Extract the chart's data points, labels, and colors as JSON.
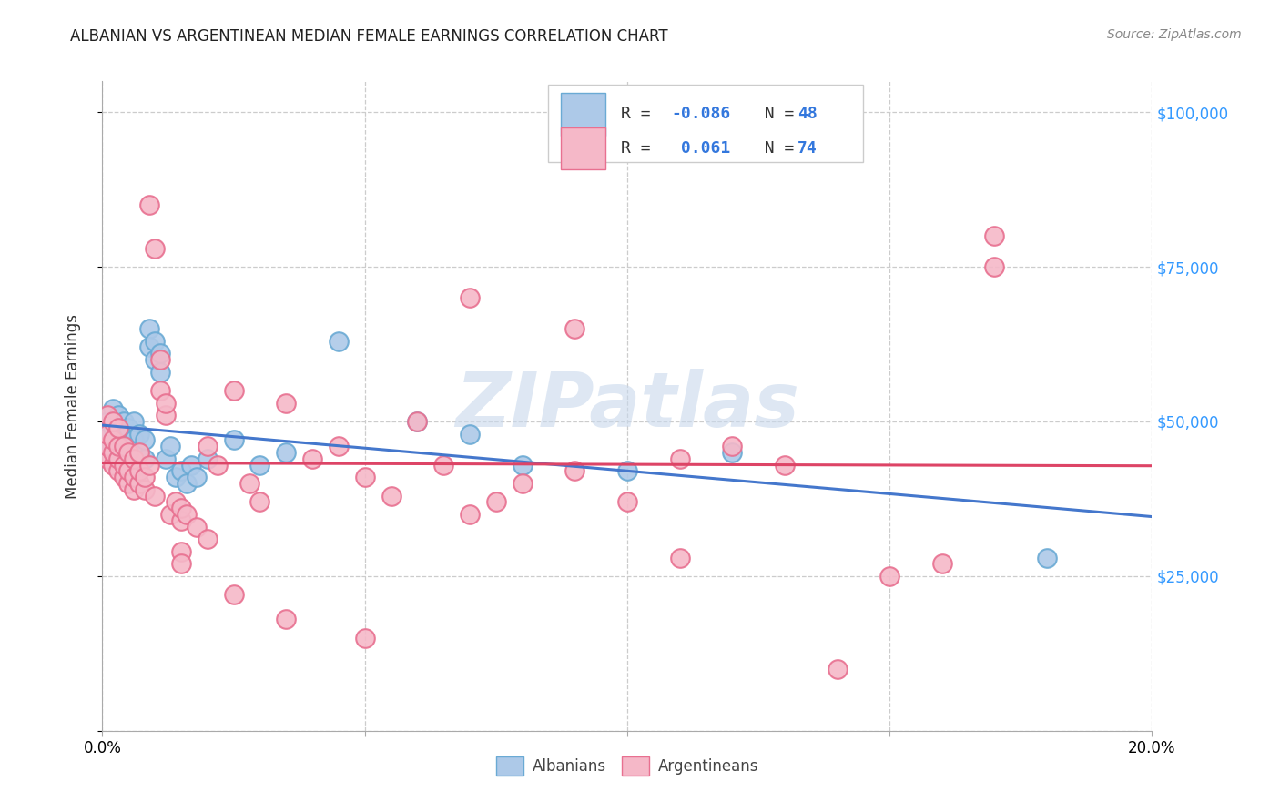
{
  "title": "ALBANIAN VS ARGENTINEAN MEDIAN FEMALE EARNINGS CORRELATION CHART",
  "source": "Source: ZipAtlas.com",
  "ylabel": "Median Female Earnings",
  "y_ticks": [
    0,
    25000,
    50000,
    75000,
    100000
  ],
  "y_tick_labels": [
    "",
    "$25,000",
    "$50,000",
    "$75,000",
    "$100,000"
  ],
  "y_tick_color": "#3399ff",
  "x_min": 0.0,
  "x_max": 0.2,
  "y_min": 0,
  "y_max": 105000,
  "albanian_face": "#adc9e8",
  "albanian_edge": "#6aaad4",
  "argentinean_face": "#f5b8c8",
  "argentinean_edge": "#e87090",
  "trendline_albanian_color": "#4477cc",
  "trendline_argentinean_color": "#dd4466",
  "watermark": "ZIPatlas",
  "legend_black": "#333333",
  "legend_blue": "#3377dd",
  "alb_x": [
    0.001,
    0.001,
    0.001,
    0.002,
    0.002,
    0.002,
    0.002,
    0.003,
    0.003,
    0.003,
    0.003,
    0.004,
    0.004,
    0.004,
    0.005,
    0.005,
    0.005,
    0.006,
    0.006,
    0.006,
    0.007,
    0.007,
    0.008,
    0.008,
    0.009,
    0.009,
    0.01,
    0.01,
    0.011,
    0.011,
    0.012,
    0.013,
    0.014,
    0.015,
    0.016,
    0.017,
    0.018,
    0.02,
    0.025,
    0.03,
    0.035,
    0.045,
    0.06,
    0.07,
    0.08,
    0.1,
    0.12,
    0.18
  ],
  "alb_y": [
    46000,
    48000,
    50000,
    45000,
    47000,
    49000,
    52000,
    44000,
    46000,
    48000,
    51000,
    45000,
    47000,
    50000,
    43000,
    46000,
    49000,
    44000,
    47000,
    50000,
    45000,
    48000,
    44000,
    47000,
    65000,
    62000,
    60000,
    63000,
    58000,
    61000,
    44000,
    46000,
    41000,
    42000,
    40000,
    43000,
    41000,
    44000,
    47000,
    43000,
    45000,
    63000,
    50000,
    48000,
    43000,
    42000,
    45000,
    28000
  ],
  "arg_x": [
    0.001,
    0.001,
    0.001,
    0.001,
    0.002,
    0.002,
    0.002,
    0.002,
    0.003,
    0.003,
    0.003,
    0.003,
    0.004,
    0.004,
    0.004,
    0.005,
    0.005,
    0.005,
    0.006,
    0.006,
    0.006,
    0.007,
    0.007,
    0.007,
    0.008,
    0.008,
    0.009,
    0.009,
    0.01,
    0.01,
    0.011,
    0.011,
    0.012,
    0.012,
    0.013,
    0.014,
    0.015,
    0.015,
    0.016,
    0.018,
    0.02,
    0.022,
    0.025,
    0.028,
    0.03,
    0.035,
    0.04,
    0.045,
    0.05,
    0.055,
    0.06,
    0.065,
    0.07,
    0.075,
    0.08,
    0.09,
    0.1,
    0.11,
    0.12,
    0.13,
    0.14,
    0.15,
    0.16,
    0.17,
    0.015,
    0.02,
    0.025,
    0.035,
    0.05,
    0.07,
    0.09,
    0.11,
    0.015,
    0.17
  ],
  "arg_y": [
    44000,
    46000,
    48000,
    51000,
    43000,
    45000,
    47000,
    50000,
    42000,
    44000,
    46000,
    49000,
    41000,
    43000,
    46000,
    40000,
    42000,
    45000,
    39000,
    41000,
    44000,
    40000,
    42000,
    45000,
    39000,
    41000,
    85000,
    43000,
    38000,
    78000,
    55000,
    60000,
    51000,
    53000,
    35000,
    37000,
    34000,
    36000,
    35000,
    33000,
    46000,
    43000,
    55000,
    40000,
    37000,
    53000,
    44000,
    46000,
    41000,
    38000,
    50000,
    43000,
    35000,
    37000,
    40000,
    42000,
    37000,
    44000,
    46000,
    43000,
    10000,
    25000,
    27000,
    80000,
    29000,
    31000,
    22000,
    18000,
    15000,
    70000,
    65000,
    28000,
    27000,
    75000
  ]
}
